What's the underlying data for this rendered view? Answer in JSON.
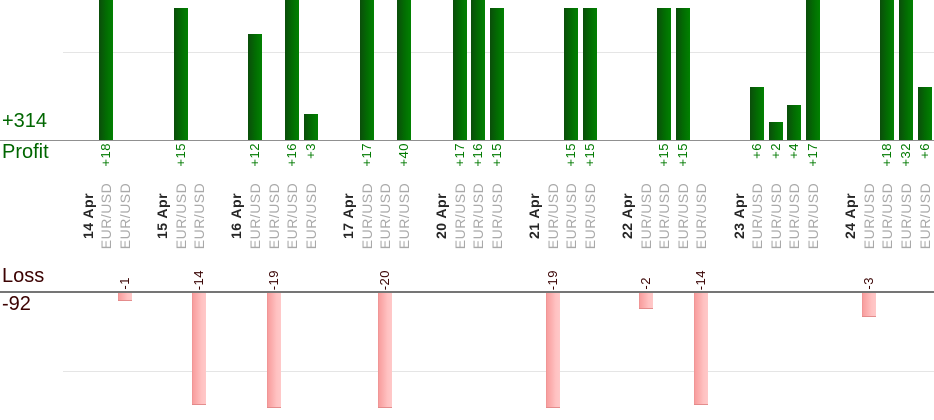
{
  "chart_data": {
    "type": "bar",
    "description": "Daily trade profit and loss by symbol, bars clipped at visible plot edges",
    "profit_section": {
      "total_label": "+314",
      "axis_title": "Profit",
      "gridline_interval": 10
    },
    "loss_section": {
      "axis_title": "Loss",
      "total_label": "-92",
      "gridline_interval": 10
    },
    "symbol_label": "EUR/USD",
    "groups": [
      {
        "date": "14 Apr",
        "trades": [
          {
            "symbol": "EUR/USD",
            "value": 18
          },
          {
            "symbol": "EUR/USD",
            "value": -1
          }
        ]
      },
      {
        "date": "15 Apr",
        "trades": [
          {
            "symbol": "EUR/USD",
            "value": 15
          },
          {
            "symbol": "EUR/USD",
            "value": -14
          }
        ]
      },
      {
        "date": "16 Apr",
        "trades": [
          {
            "symbol": "EUR/USD",
            "value": 12
          },
          {
            "symbol": "EUR/USD",
            "value": -19
          },
          {
            "symbol": "EUR/USD",
            "value": 16
          },
          {
            "symbol": "EUR/USD",
            "value": 3
          }
        ]
      },
      {
        "date": "17 Apr",
        "trades": [
          {
            "symbol": "EUR/USD",
            "value": 17
          },
          {
            "symbol": "EUR/USD",
            "value": -20
          },
          {
            "symbol": "EUR/USD",
            "value": 40
          }
        ]
      },
      {
        "date": "20 Apr",
        "trades": [
          {
            "symbol": "EUR/USD",
            "value": 17
          },
          {
            "symbol": "EUR/USD",
            "value": 16
          },
          {
            "symbol": "EUR/USD",
            "value": 15
          }
        ]
      },
      {
        "date": "21 Apr",
        "trades": [
          {
            "symbol": "EUR/USD",
            "value": -19
          },
          {
            "symbol": "EUR/USD",
            "value": 15
          },
          {
            "symbol": "EUR/USD",
            "value": 15
          }
        ]
      },
      {
        "date": "22 Apr",
        "trades": [
          {
            "symbol": "EUR/USD",
            "value": -2
          },
          {
            "symbol": "EUR/USD",
            "value": 15
          },
          {
            "symbol": "EUR/USD",
            "value": 15
          },
          {
            "symbol": "EUR/USD",
            "value": -14
          }
        ]
      },
      {
        "date": "23 Apr",
        "trades": [
          {
            "symbol": "EUR/USD",
            "value": 6
          },
          {
            "symbol": "EUR/USD",
            "value": 2
          },
          {
            "symbol": "EUR/USD",
            "value": 4
          },
          {
            "symbol": "EUR/USD",
            "value": 17
          }
        ]
      },
      {
        "date": "24 Apr",
        "trades": [
          {
            "symbol": "EUR/USD",
            "value": -3
          },
          {
            "symbol": "EUR/USD",
            "value": 18
          },
          {
            "symbol": "EUR/USD",
            "value": 32
          },
          {
            "symbol": "EUR/USD",
            "value": 6
          }
        ]
      }
    ],
    "colors": {
      "profit_bar_dark": "#0b4d0b",
      "profit_bar_light": "#018101",
      "loss_bar_dark": "#f79a9a",
      "loss_bar_light": "#ffc9c9",
      "profit_text": "#006600",
      "loss_text": "#3c0202",
      "date_text": "#262626",
      "symbol_text": "#a9a9a9"
    }
  }
}
